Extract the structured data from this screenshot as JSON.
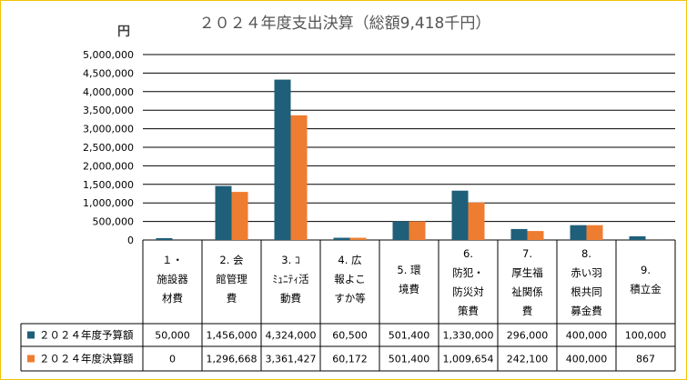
{
  "chart_data": {
    "type": "bar",
    "title": "２０２４年度支出決算（総額9,418千円）",
    "unit": "円",
    "ylim": [
      0,
      5000000
    ],
    "yticks": [
      "5,000,000",
      "4,500,000",
      "4,000,000",
      "3,500,000",
      "3,000,000",
      "2,500,000",
      "2,000,000",
      "1,500,000",
      "1,000,000",
      "500,000",
      "0"
    ],
    "categories": [
      [
        "１・",
        "施設器",
        "材費"
      ],
      [
        "2. 会",
        "館管理",
        "費"
      ],
      [
        "3. ｺ",
        "ﾐｭﾆﾃｨ活",
        "動費"
      ],
      [
        "4. 広",
        "報よこ",
        "すか等"
      ],
      [
        "5. 環",
        "境費"
      ],
      [
        "6.",
        "防犯・",
        "防災対",
        "策費"
      ],
      [
        "7.",
        "厚生福",
        "祉関係",
        "費"
      ],
      [
        "8.",
        "赤い羽",
        "根共同",
        "募金費"
      ],
      [
        "9.",
        "積立金"
      ]
    ],
    "series": [
      {
        "name": "２０２４年度予算額",
        "color": "#1f5f7a",
        "values": [
          50000,
          1456000,
          4324000,
          60500,
          501400,
          1330000,
          296000,
          400000,
          100000
        ],
        "labels": [
          "50,000",
          "1,456,000",
          "4,324,000",
          "60,500",
          "501,400",
          "1,330,000",
          "296,000",
          "400,000",
          "100,000"
        ]
      },
      {
        "name": "２０２４年度決算額",
        "color": "#ee7d31",
        "values": [
          0,
          1296668,
          3361427,
          60172,
          501400,
          1009654,
          242100,
          400000,
          867
        ],
        "labels": [
          "0",
          "1,296,668",
          "3,361,427",
          "60,172",
          "501,400",
          "1,009,654",
          "242,100",
          "400,000",
          "867"
        ]
      }
    ],
    "grid": true,
    "legend": "table-left"
  }
}
